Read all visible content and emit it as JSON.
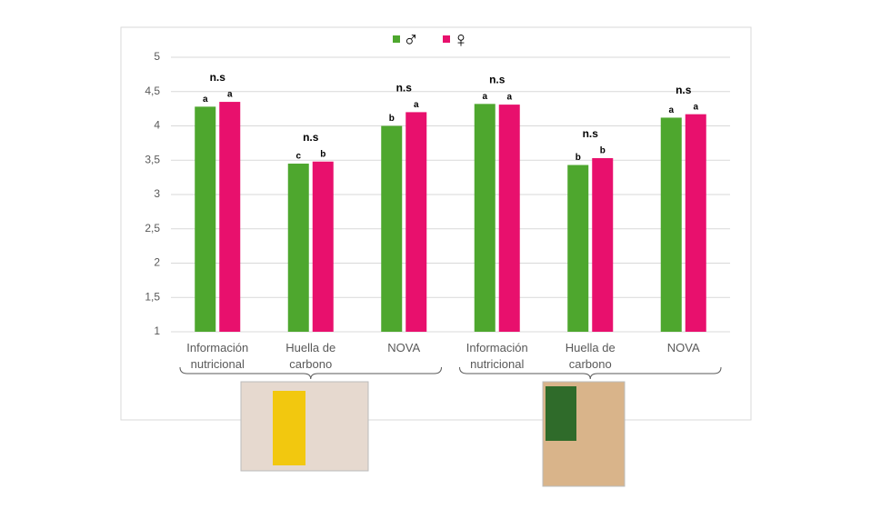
{
  "chart_data": {
    "type": "bar",
    "categories": [
      "Información nutricional",
      "Huella de carbono",
      "NOVA",
      "Información nutricional",
      "Huella de carbono",
      "NOVA"
    ],
    "series": [
      {
        "name": "♂",
        "color": "#4ea72e",
        "values": [
          4.28,
          3.45,
          4.0,
          4.32,
          3.43,
          4.12
        ],
        "letters": [
          "a",
          "c",
          "b",
          "a",
          "b",
          "a"
        ]
      },
      {
        "name": "♀",
        "color": "#e8106d",
        "values": [
          4.35,
          3.48,
          4.2,
          4.31,
          3.53,
          4.17
        ],
        "letters": [
          "a",
          "b",
          "a",
          "a",
          "b",
          "a"
        ]
      }
    ],
    "group_annotations": [
      "n.s",
      "n.s",
      "n.s",
      "n.s",
      "n.s",
      "n.s"
    ],
    "ylim": [
      1,
      5
    ],
    "yticks": [
      1,
      {
        "value": 1.5,
        "label": "1,5"
      },
      2,
      {
        "value": 2.5,
        "label": "2,5"
      },
      3,
      {
        "value": 3.5,
        "label": "3,5"
      },
      4,
      {
        "value": 4.5,
        "label": "4,5"
      },
      5
    ],
    "grid": true
  }
}
